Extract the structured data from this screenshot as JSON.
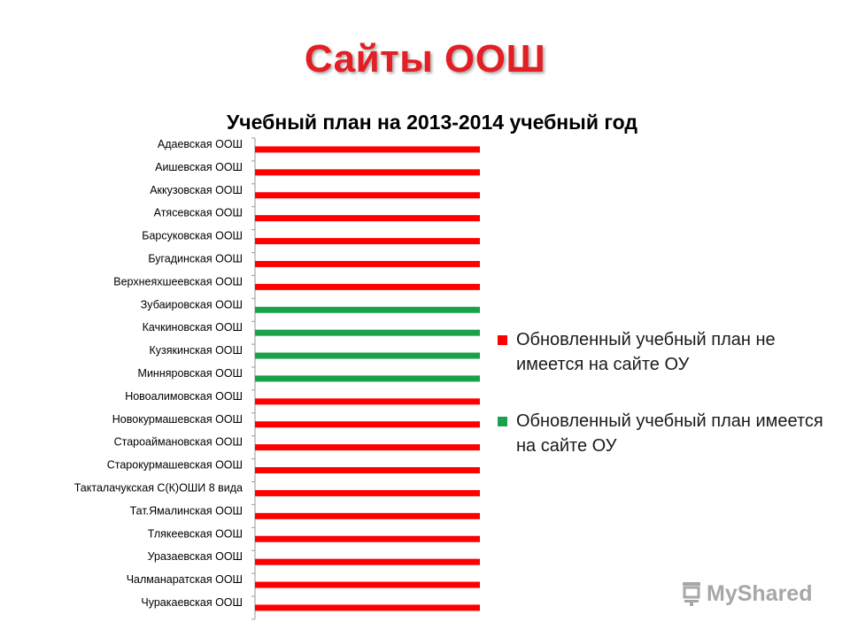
{
  "slide_title": "Сайты ООШ",
  "chart_data": {
    "type": "bar",
    "orientation": "horizontal",
    "title": "Учебный план на 2013-2014 учебный год",
    "categories": [
      "Адаевская ООШ",
      "Аишевская ООШ",
      "Аккузовская ООШ",
      "Атясевская ООШ",
      "Барсуковская ООШ",
      "Бугадинская ООШ",
      "Верхнеяхшеевская ООШ",
      "Зубаировская ООШ",
      "Качкиновская ООШ",
      "Кузякинская ООШ",
      "Минняровская ООШ",
      "Новоалимовская ООШ",
      "Новокурмашевская ООШ",
      "Староаймановская ООШ",
      "Старокурмашевская ООШ",
      "Такталачукская С(К)ОШИ 8 вида",
      "Тат.Ямалинская ООШ",
      "Тлякеевская ООШ",
      "Уразаевская ООШ",
      "Чалманаратская ООШ",
      "Чуракаевская ООШ"
    ],
    "series": [
      {
        "name": "Обновленный учебный план не имеется на сайте ОУ",
        "color": "#ff0000",
        "values": [
          1,
          1,
          1,
          1,
          1,
          1,
          1,
          0,
          0,
          0,
          0,
          1,
          1,
          1,
          1,
          1,
          1,
          1,
          1,
          1,
          1
        ]
      },
      {
        "name": "Обновленный учебный план имеется на сайте ОУ",
        "color": "#1aa14b",
        "values": [
          0,
          0,
          0,
          0,
          0,
          0,
          0,
          1,
          1,
          1,
          1,
          0,
          0,
          0,
          0,
          0,
          0,
          0,
          0,
          0,
          0
        ]
      }
    ],
    "xlim": [
      0,
      1
    ],
    "legend_position": "right",
    "grid": false,
    "value_axis_visible": false
  },
  "legend": {
    "items": [
      {
        "label": "Обновленный учебный план не имеется на сайте ОУ",
        "color": "#ff0000"
      },
      {
        "label": "Обновленный учебный план имеется на сайте ОУ",
        "color": "#1aa14b"
      }
    ]
  },
  "watermark": {
    "text": "MyShared",
    "icon": "presentation-board-icon"
  }
}
